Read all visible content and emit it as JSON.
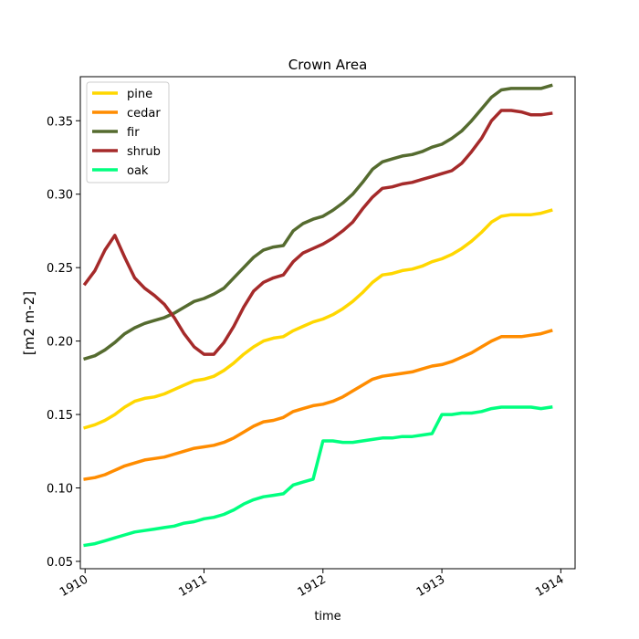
{
  "chart_data": {
    "type": "line",
    "title": "Crown Area",
    "xlabel": "time",
    "ylabel": "[m2 m-2]",
    "xlim": [
      1909.96,
      1914.12
    ],
    "ylim": [
      0.045,
      0.38
    ],
    "x_ticks": [
      1910,
      1911,
      1912,
      1913,
      1914
    ],
    "x_tick_labels": [
      "1910",
      "1911",
      "1912",
      "1913",
      "1914"
    ],
    "y_ticks": [
      0.05,
      0.1,
      0.15,
      0.2,
      0.25,
      0.3,
      0.35
    ],
    "y_tick_labels": [
      "0.05",
      "0.10",
      "0.15",
      "0.20",
      "0.25",
      "0.30",
      "0.35"
    ],
    "grid": false,
    "legend_position": "upper-left",
    "x": [
      1910.0,
      1910.083,
      1910.167,
      1910.25,
      1910.333,
      1910.417,
      1910.5,
      1910.583,
      1910.667,
      1910.75,
      1910.833,
      1910.917,
      1911.0,
      1911.083,
      1911.167,
      1911.25,
      1911.333,
      1911.417,
      1911.5,
      1911.583,
      1911.667,
      1911.75,
      1911.833,
      1911.917,
      1912.0,
      1912.083,
      1912.167,
      1912.25,
      1912.333,
      1912.417,
      1912.5,
      1912.583,
      1912.667,
      1912.75,
      1912.833,
      1912.917,
      1913.0,
      1913.083,
      1913.167,
      1913.25,
      1913.333,
      1913.417,
      1913.5,
      1913.583,
      1913.667,
      1913.75,
      1913.833,
      1913.917
    ],
    "series": [
      {
        "name": "pine",
        "color": "#FFD700",
        "values": [
          0.141,
          0.143,
          0.146,
          0.15,
          0.155,
          0.159,
          0.161,
          0.162,
          0.164,
          0.167,
          0.17,
          0.173,
          0.174,
          0.176,
          0.18,
          0.185,
          0.191,
          0.196,
          0.2,
          0.202,
          0.203,
          0.207,
          0.21,
          0.213,
          0.215,
          0.218,
          0.222,
          0.227,
          0.233,
          0.24,
          0.245,
          0.246,
          0.248,
          0.249,
          0.251,
          0.254,
          0.256,
          0.259,
          0.263,
          0.268,
          0.274,
          0.281,
          0.285,
          0.286,
          0.286,
          0.286,
          0.287,
          0.289
        ]
      },
      {
        "name": "cedar",
        "color": "#FF8C00",
        "values": [
          0.106,
          0.107,
          0.109,
          0.112,
          0.115,
          0.117,
          0.119,
          0.12,
          0.121,
          0.123,
          0.125,
          0.127,
          0.128,
          0.129,
          0.131,
          0.134,
          0.138,
          0.142,
          0.145,
          0.146,
          0.148,
          0.152,
          0.154,
          0.156,
          0.157,
          0.159,
          0.162,
          0.166,
          0.17,
          0.174,
          0.176,
          0.177,
          0.178,
          0.179,
          0.181,
          0.183,
          0.184,
          0.186,
          0.189,
          0.192,
          0.196,
          0.2,
          0.203,
          0.203,
          0.203,
          0.204,
          0.205,
          0.207
        ]
      },
      {
        "name": "fir",
        "color": "#556B2F",
        "values": [
          0.188,
          0.19,
          0.194,
          0.199,
          0.205,
          0.209,
          0.212,
          0.214,
          0.216,
          0.219,
          0.223,
          0.227,
          0.229,
          0.232,
          0.236,
          0.243,
          0.25,
          0.257,
          0.262,
          0.264,
          0.265,
          0.275,
          0.28,
          0.283,
          0.285,
          0.289,
          0.294,
          0.3,
          0.308,
          0.317,
          0.322,
          0.324,
          0.326,
          0.327,
          0.329,
          0.332,
          0.334,
          0.338,
          0.343,
          0.35,
          0.358,
          0.366,
          0.371,
          0.372,
          0.372,
          0.372,
          0.372,
          0.374
        ]
      },
      {
        "name": "shrub",
        "color": "#A52A2A",
        "values": [
          0.239,
          0.248,
          0.262,
          0.272,
          0.257,
          0.243,
          0.236,
          0.231,
          0.225,
          0.216,
          0.205,
          0.196,
          0.191,
          0.191,
          0.199,
          0.21,
          0.223,
          0.234,
          0.24,
          0.243,
          0.245,
          0.254,
          0.26,
          0.263,
          0.266,
          0.27,
          0.275,
          0.281,
          0.29,
          0.298,
          0.304,
          0.305,
          0.307,
          0.308,
          0.31,
          0.312,
          0.314,
          0.316,
          0.321,
          0.329,
          0.338,
          0.35,
          0.357,
          0.357,
          0.356,
          0.354,
          0.354,
          0.355
        ]
      },
      {
        "name": "oak",
        "color": "#00FF7F",
        "values": [
          0.061,
          0.062,
          0.064,
          0.066,
          0.068,
          0.07,
          0.071,
          0.072,
          0.073,
          0.074,
          0.076,
          0.077,
          0.079,
          0.08,
          0.082,
          0.085,
          0.089,
          0.092,
          0.094,
          0.095,
          0.096,
          0.102,
          0.104,
          0.106,
          0.132,
          0.132,
          0.131,
          0.131,
          0.132,
          0.133,
          0.134,
          0.134,
          0.135,
          0.135,
          0.136,
          0.137,
          0.15,
          0.15,
          0.151,
          0.151,
          0.152,
          0.154,
          0.155,
          0.155,
          0.155,
          0.155,
          0.154,
          0.155
        ]
      }
    ]
  }
}
